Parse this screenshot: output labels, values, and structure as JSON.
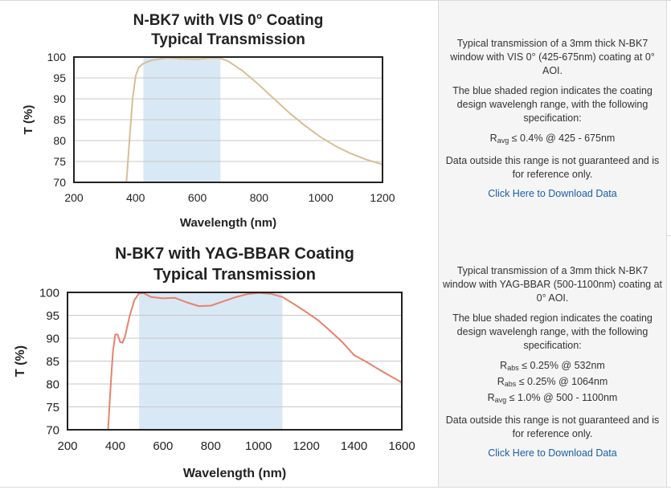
{
  "chart_data": [
    {
      "type": "line",
      "title": "N-BK7 with VIS 0° Coating",
      "subtitle": "Typical Transmission",
      "xlabel": "Wavelength (nm)",
      "ylabel": "T (%)",
      "xlim": [
        200,
        1200
      ],
      "ylim": [
        70,
        100
      ],
      "xticks": [
        200,
        400,
        600,
        800,
        1000,
        1200
      ],
      "yticks": [
        70,
        75,
        80,
        85,
        90,
        95,
        100
      ],
      "shaded_region": [
        425,
        675
      ],
      "grid": true,
      "series": [
        {
          "color": "#d7bf95",
          "x": [
            370,
            380,
            390,
            400,
            410,
            420,
            430,
            450,
            500,
            550,
            600,
            650,
            675,
            700,
            750,
            800,
            850,
            900,
            950,
            1000,
            1050,
            1100,
            1150,
            1200
          ],
          "y": [
            70,
            80,
            90,
            95.5,
            97.5,
            98.2,
            98.6,
            99.2,
            99.8,
            99.6,
            99.5,
            99.8,
            99.7,
            99,
            96.5,
            93.3,
            89.9,
            86.5,
            83.5,
            80.8,
            78.6,
            76.8,
            75.4,
            74.3
          ]
        }
      ]
    },
    {
      "type": "line",
      "title": "N-BK7 with YAG-BBAR Coating",
      "subtitle": "Typical Transmission",
      "xlabel": "Wavelength (nm)",
      "ylabel": "T (%)",
      "xlim": [
        200,
        1600
      ],
      "ylim": [
        70,
        100
      ],
      "xticks": [
        200,
        400,
        600,
        800,
        1000,
        1200,
        1400,
        1600
      ],
      "yticks": [
        70,
        75,
        80,
        85,
        90,
        95,
        100
      ],
      "shaded_region": [
        500,
        1100
      ],
      "grid": true,
      "series": [
        {
          "color": "#e8826b",
          "x": [
            370,
            380,
            390,
            400,
            410,
            420,
            430,
            440,
            450,
            460,
            480,
            500,
            520,
            550,
            600,
            650,
            700,
            750,
            800,
            850,
            900,
            950,
            1000,
            1050,
            1100,
            1150,
            1200,
            1250,
            1300,
            1350,
            1400,
            1450,
            1500,
            1550,
            1600
          ],
          "y": [
            70,
            79,
            87,
            90.8,
            90.8,
            89.2,
            89,
            90.2,
            92.5,
            94.8,
            98.3,
            99.8,
            99.8,
            99,
            98.7,
            98.8,
            97.8,
            97,
            97.1,
            98,
            98.9,
            99.6,
            99.9,
            99.7,
            99,
            97.4,
            95.7,
            93.9,
            91.6,
            89.2,
            86.3,
            84.9,
            83.3,
            81.8,
            80.3
          ]
        }
      ]
    }
  ],
  "chart_colors": {
    "shade": "#d9e8f5",
    "grid": "#c8c8c8",
    "frame": "#222222",
    "text": "#222222"
  },
  "panels": [
    {
      "description": "Typical transmission of a 3mm thick N-BK7 window with VIS 0° (425-675nm) coating at 0° AOI.",
      "shading_note": "The blue shaded region indicates the coating design wavelengh range, with the following specification:",
      "specs": [
        {
          "symbol": "R",
          "sub": "avg",
          "rest": " ≤ 0.4% @ 425 - 675nm"
        }
      ],
      "disclaimer": "Data outside this range is not guaranteed and is for reference only.",
      "download_link": "Click Here to Download Data"
    },
    {
      "description": "Typical transmission of a 3mm thick N-BK7 window with YAG-BBAR (500-1100nm) coating at 0° AOI.",
      "shading_note": "The blue shaded region indicates the coating design wavelengh range, with the following specification:",
      "specs": [
        {
          "symbol": "R",
          "sub": "abs",
          "rest": " ≤ 0.25% @ 532nm"
        },
        {
          "symbol": "R",
          "sub": "abs",
          "rest": " ≤ 0.25% @ 1064nm"
        },
        {
          "symbol": "R",
          "sub": "avg",
          "rest": " ≤ 1.0% @ 500 - 1100nm"
        }
      ],
      "disclaimer": "Data outside this range is not guaranteed and is for reference only.",
      "download_link": "Click Here to Download Data"
    }
  ]
}
